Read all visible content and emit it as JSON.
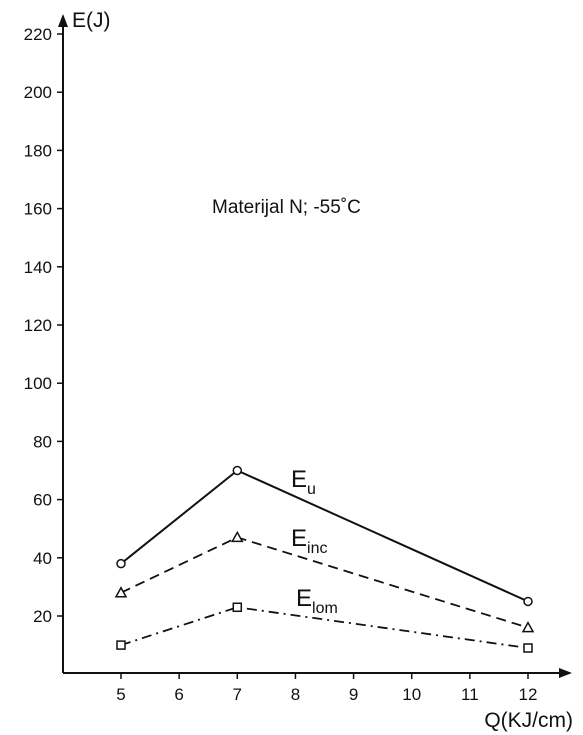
{
  "chart_data": {
    "type": "line",
    "title": "",
    "annotation": "Materijal N; -55˚C",
    "xlabel": "Q(KJ/cm)",
    "ylabel": "E(J)",
    "xlim": [
      4,
      13.5
    ],
    "ylim": [
      0,
      225
    ],
    "xticks": [
      5,
      6,
      7,
      8,
      9,
      10,
      11,
      12
    ],
    "yticks": [
      20,
      40,
      60,
      80,
      100,
      120,
      140,
      160,
      180,
      200,
      220
    ],
    "grid": false,
    "legend": "none",
    "series": [
      {
        "name": "E",
        "subscript": "u",
        "marker": "circle",
        "line_style": "solid",
        "x": [
          5,
          7,
          12
        ],
        "y": [
          38,
          70,
          25
        ]
      },
      {
        "name": "E",
        "subscript": "inc",
        "marker": "triangle",
        "line_style": "dashed",
        "x": [
          5,
          7,
          12
        ],
        "y": [
          28,
          47,
          16
        ]
      },
      {
        "name": "E",
        "subscript": "lom",
        "marker": "square",
        "line_style": "dash-dot",
        "x": [
          5,
          7,
          12
        ],
        "y": [
          10,
          23,
          9
        ]
      }
    ]
  }
}
